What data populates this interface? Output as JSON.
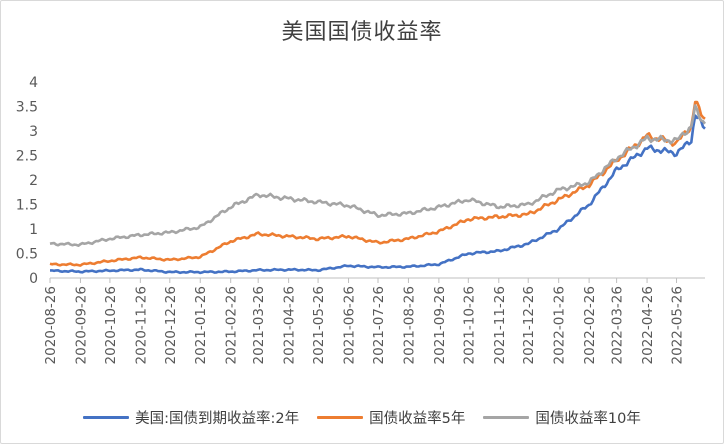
{
  "chart_data": {
    "type": "line",
    "title": "美国国债收益率",
    "xlabel": "",
    "ylabel": "",
    "ylim": [
      0,
      4
    ],
    "yticks": [
      "0",
      "0.5",
      "1",
      "1.5",
      "2",
      "2.5",
      "3",
      "3.5",
      "4"
    ],
    "grid": false,
    "legend_position": "bottom",
    "x_tick_labels": [
      "2020-08-26",
      "2020-09-26",
      "2020-10-26",
      "2020-11-26",
      "2020-12-26",
      "2021-01-26",
      "2021-02-26",
      "2021-03-26",
      "2021-04-26",
      "2021-05-26",
      "2021-06-26",
      "2021-07-26",
      "2021-08-26",
      "2021-09-26",
      "2021-10-26",
      "2021-11-26",
      "2021-12-26",
      "2022-01-26",
      "2022-02-26",
      "2022-03-26",
      "2022-04-26",
      "2022-05-26"
    ],
    "x": [
      "2020-08-26",
      "2020-09-26",
      "2020-10-26",
      "2020-11-26",
      "2020-12-26",
      "2021-01-26",
      "2021-02-26",
      "2021-03-26",
      "2021-04-26",
      "2021-05-26",
      "2021-06-26",
      "2021-07-26",
      "2021-08-26",
      "2021-09-26",
      "2021-10-26",
      "2021-11-26",
      "2021-12-26",
      "2022-01-26",
      "2022-02-26",
      "2022-03-26",
      "2022-04-26",
      "2022-05-26",
      "2022-06-10",
      "2022-06-14",
      "2022-06-20",
      "2022-06-24"
    ],
    "series": [
      {
        "name": "美国:国债到期收益率:2年",
        "color": "#4472c4",
        "values": [
          0.15,
          0.13,
          0.15,
          0.17,
          0.12,
          0.12,
          0.13,
          0.16,
          0.17,
          0.16,
          0.25,
          0.22,
          0.23,
          0.28,
          0.5,
          0.55,
          0.7,
          1.0,
          1.5,
          2.2,
          2.65,
          2.55,
          2.8,
          3.35,
          3.15,
          3.05
        ]
      },
      {
        "name": "国债收益率5年",
        "color": "#ed7d31",
        "values": [
          0.28,
          0.27,
          0.35,
          0.42,
          0.37,
          0.43,
          0.75,
          0.9,
          0.85,
          0.8,
          0.85,
          0.72,
          0.8,
          0.95,
          1.2,
          1.25,
          1.3,
          1.6,
          1.9,
          2.4,
          2.9,
          2.75,
          3.1,
          3.6,
          3.35,
          3.25
        ]
      },
      {
        "name": "国债收益率10年",
        "color": "#a5a5a5",
        "values": [
          0.7,
          0.68,
          0.8,
          0.88,
          0.93,
          1.04,
          1.45,
          1.7,
          1.62,
          1.55,
          1.48,
          1.28,
          1.32,
          1.45,
          1.6,
          1.45,
          1.5,
          1.8,
          1.95,
          2.45,
          2.85,
          2.8,
          3.1,
          3.45,
          3.25,
          3.15
        ]
      }
    ]
  }
}
